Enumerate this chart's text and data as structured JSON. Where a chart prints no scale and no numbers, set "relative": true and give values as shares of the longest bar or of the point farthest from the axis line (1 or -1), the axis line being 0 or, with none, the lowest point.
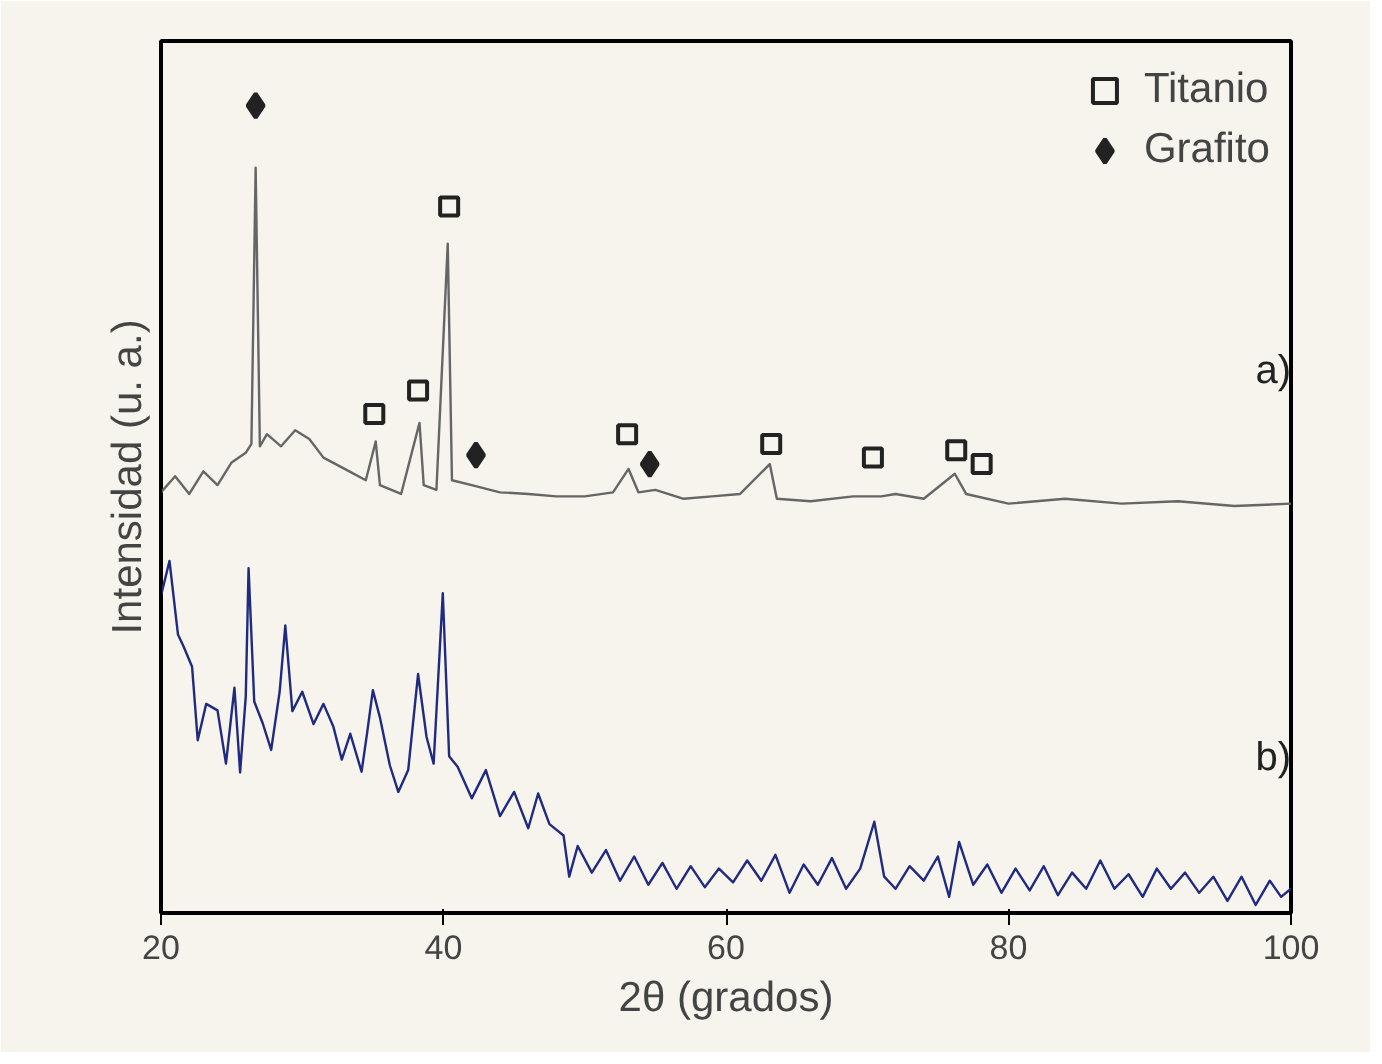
{
  "chart_data": {
    "type": "line",
    "relative": true,
    "xlabel": "2θ (grados)",
    "ylabel": "Intensidad (u. a.)",
    "xlim": [
      20,
      100
    ],
    "xticks": [
      20,
      40,
      60,
      80,
      100
    ],
    "tick_labels": "x",
    "grid": false,
    "legend": "top right",
    "series": [
      {
        "name": "a)",
        "color": "#666666",
        "x": [
          20,
          21,
          22,
          23,
          24,
          25,
          26,
          26.4,
          26.7,
          27.0,
          27.5,
          28.5,
          29.5,
          30.5,
          31.5,
          33,
          34.5,
          35.2,
          35.5,
          37,
          38.3,
          38.6,
          39.5,
          40.3,
          40.6,
          42,
          44,
          46,
          48,
          50,
          52,
          53.1,
          53.8,
          55,
          57,
          59,
          61,
          63.1,
          63.6,
          66,
          69,
          71,
          72,
          74,
          76.2,
          77,
          80,
          84,
          88,
          92,
          96,
          100
        ],
        "values": [
          0.521,
          0.541,
          0.519,
          0.547,
          0.53,
          0.558,
          0.57,
          0.581,
          0.923,
          0.578,
          0.593,
          0.578,
          0.598,
          0.587,
          0.564,
          0.55,
          0.536,
          0.584,
          0.53,
          0.519,
          0.607,
          0.53,
          0.524,
          0.829,
          0.536,
          0.53,
          0.521,
          0.519,
          0.516,
          0.516,
          0.521,
          0.55,
          0.521,
          0.524,
          0.513,
          0.516,
          0.519,
          0.556,
          0.513,
          0.51,
          0.516,
          0.516,
          0.519,
          0.513,
          0.544,
          0.519,
          0.507,
          0.513,
          0.507,
          0.51,
          0.504,
          0.507
        ]
      },
      {
        "name": "b)",
        "color": "#1f2a80",
        "x": [
          20,
          20.6,
          21.2,
          21.6,
          22.2,
          22.6,
          23.2,
          24,
          24.6,
          25.2,
          25.6,
          26.0,
          26.2,
          26.6,
          27.2,
          27.8,
          28.4,
          28.8,
          29.3,
          30,
          30.8,
          31.5,
          32.2,
          32.8,
          33.4,
          34.2,
          34.6,
          35.0,
          35.5,
          36.2,
          36.8,
          37.5,
          38.2,
          38.8,
          39.3,
          39.95,
          40.4,
          41,
          42,
          43,
          44,
          45,
          46,
          46.7,
          47.5,
          48.5,
          48.9,
          49.5,
          50.5,
          51.5,
          52.5,
          53.5,
          54.5,
          55.5,
          56.5,
          57.5,
          58.5,
          59.5,
          60.5,
          61.5,
          62.5,
          63.5,
          64.5,
          65.5,
          66.5,
          67.5,
          68.5,
          69.5,
          70.5,
          71.2,
          72,
          73,
          74,
          75,
          75.8,
          76.5,
          77.5,
          78.5,
          79.5,
          80.5,
          81.5,
          82.5,
          83.5,
          84.5,
          85.5,
          86.5,
          87.5,
          88.5,
          89.5,
          90.5,
          91.5,
          92.5,
          93.5,
          94.5,
          95.5,
          96.5,
          97.5,
          98.5,
          99.3,
          100
        ],
        "values": [
          0.393,
          0.436,
          0.345,
          0.33,
          0.305,
          0.214,
          0.259,
          0.251,
          0.185,
          0.279,
          0.174,
          0.268,
          0.427,
          0.262,
          0.235,
          0.202,
          0.274,
          0.356,
          0.25,
          0.274,
          0.234,
          0.259,
          0.231,
          0.19,
          0.222,
          0.175,
          0.224,
          0.276,
          0.242,
          0.183,
          0.15,
          0.177,
          0.296,
          0.218,
          0.185,
          0.396,
          0.194,
          0.181,
          0.142,
          0.177,
          0.12,
          0.15,
          0.105,
          0.148,
          0.11,
          0.096,
          0.045,
          0.083,
          0.05,
          0.078,
          0.04,
          0.07,
          0.035,
          0.062,
          0.03,
          0.058,
          0.032,
          0.055,
          0.038,
          0.065,
          0.04,
          0.072,
          0.025,
          0.06,
          0.035,
          0.068,
          0.03,
          0.055,
          0.113,
          0.045,
          0.03,
          0.058,
          0.04,
          0.07,
          0.02,
          0.088,
          0.035,
          0.06,
          0.025,
          0.055,
          0.028,
          0.058,
          0.022,
          0.05,
          0.03,
          0.065,
          0.03,
          0.048,
          0.02,
          0.055,
          0.03,
          0.05,
          0.025,
          0.045,
          0.015,
          0.045,
          0.01,
          0.04,
          0.02,
          0.03
        ]
      },
      {
        "name": "Titanio",
        "type": "scatter",
        "marker": "square",
        "color": "#222222",
        "x": [
          35.1,
          38.2,
          40.4,
          53.0,
          63.2,
          70.4,
          76.3,
          78.1
        ],
        "values": [
          0.618,
          0.647,
          0.875,
          0.593,
          0.581,
          0.564,
          0.573,
          0.556
        ]
      },
      {
        "name": "Grafito",
        "type": "scatter",
        "marker": "diamond",
        "color": "#222222",
        "x": [
          26.7,
          42.3,
          54.6
        ],
        "values": [
          1.0,
          0.567,
          0.556
        ]
      }
    ]
  }
}
